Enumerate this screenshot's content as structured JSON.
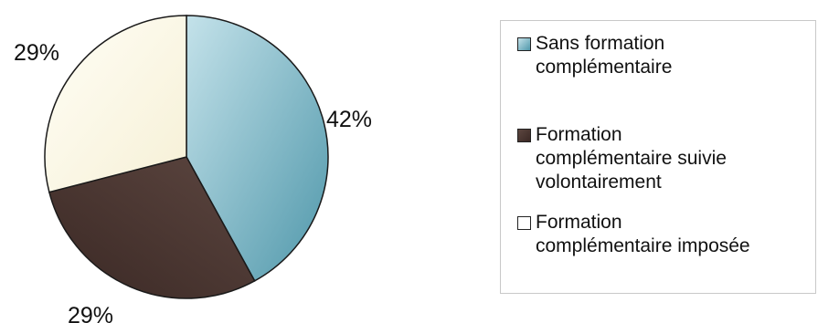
{
  "chart_data": {
    "type": "pie",
    "slices": [
      {
        "label": "Sans formation\ncomplémentaire",
        "value": 42,
        "value_label": "42%",
        "color": "#7fb6c4"
      },
      {
        "label": "Formation\ncomplémentaire suivie\nvolontairement",
        "value": 29,
        "value_label": "29%",
        "color": "#4b3530"
      },
      {
        "label": "Formation\ncomplémentaire imposée",
        "value": 29,
        "value_label": "29%",
        "color": "#fbf8e6"
      }
    ],
    "legend": "right"
  }
}
